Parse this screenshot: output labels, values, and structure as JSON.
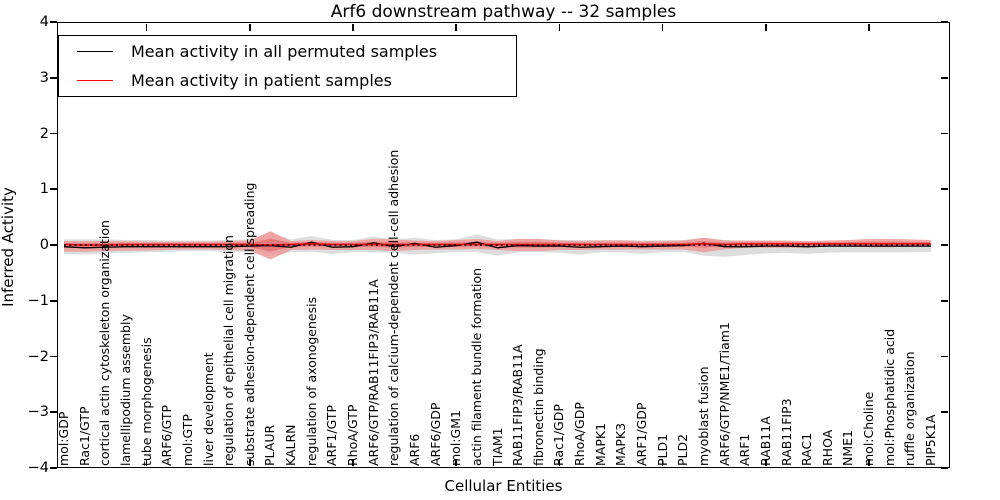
{
  "title": "Arf6 downstream pathway -- 32 samples",
  "axes": {
    "x_label": "Cellular Entities",
    "y_label": "Inferred Activity",
    "y_tick_labels": [
      "4",
      "3",
      "2",
      "1",
      "0",
      "−1",
      "−2",
      "−3",
      "−4"
    ]
  },
  "legend": {
    "entries": [
      {
        "label": "Mean activity in all permuted samples",
        "color": "#000000"
      },
      {
        "label": "Mean activity in patient samples",
        "color": "#ff0000"
      }
    ]
  },
  "chart_data": {
    "type": "line",
    "title": "Arf6 downstream pathway -- 32 samples",
    "xlabel": "Cellular Entities",
    "ylabel": "Inferred Activity",
    "ylim": [
      -4,
      4
    ],
    "grid": false,
    "legend_position": "upper left",
    "zero_line": {
      "style": "dotted",
      "color": "#000000",
      "y": 0
    },
    "categories": [
      "mol:GDP",
      "Rac1/GTP",
      "cortical actin cytoskeleton organization",
      "lamellipodium assembly",
      "tube morphogenesis",
      "ARF6/GTP",
      "mol:GTP",
      "liver development",
      "regulation of epithelial cell migration",
      "substrate adhesion-dependent cell spreading",
      "PLAUR",
      "KALRN",
      "regulation of axonogenesis",
      "ARF1/GTP",
      "RhoA/GTP",
      "ARF6/GTP/RAB11FIP3/RAB11A",
      "regulation of calcium-dependent cell-cell adhesion",
      "ARF6",
      "ARF6/GDP",
      "mol:GM1",
      "actin filament bundle formation",
      "TIAM1",
      "RAB11FIP3/RAB11A",
      "fibronectin binding",
      "Rac1/GDP",
      "RhoA/GDP",
      "MAPK1",
      "MAPK3",
      "ARF1/GDP",
      "PLD1",
      "PLD2",
      "myoblast fusion",
      "ARF6/GTP/NME1/Tiam1",
      "ARF1",
      "RAB11A",
      "RAB11FIP3",
      "RAC1",
      "RHOA",
      "NME1",
      "mol:Choline",
      "mol:Phosphatidic acid",
      "ruffle organization",
      "PIP5K1A"
    ],
    "series": [
      {
        "name": "Mean activity in all permuted samples",
        "color": "#000000",
        "values": [
          -0.03,
          -0.05,
          -0.04,
          -0.03,
          -0.03,
          -0.03,
          -0.03,
          -0.03,
          -0.03,
          -0.02,
          -0.01,
          -0.04,
          0.05,
          -0.04,
          -0.03,
          0.04,
          -0.03,
          0.03,
          -0.04,
          -0.01,
          0.05,
          -0.05,
          -0.01,
          -0.02,
          -0.02,
          -0.04,
          -0.03,
          -0.02,
          -0.03,
          -0.02,
          -0.01,
          0.03,
          -0.03,
          -0.03,
          -0.02,
          -0.02,
          -0.03,
          -0.02,
          -0.02,
          -0.02,
          -0.02,
          -0.02,
          -0.02
        ]
      },
      {
        "name": "Mean activity in patient samples",
        "color": "#ff0000",
        "values": [
          0.01,
          0.0,
          0.0,
          0.01,
          0.01,
          0.01,
          0.01,
          0.01,
          0.01,
          0.01,
          0.0,
          0.01,
          0.02,
          0.01,
          0.01,
          0.01,
          0.01,
          0.01,
          0.01,
          0.01,
          0.01,
          0.01,
          0.01,
          0.01,
          0.01,
          0.01,
          0.01,
          0.01,
          0.01,
          0.01,
          0.01,
          0.02,
          0.01,
          0.02,
          0.02,
          0.02,
          0.02,
          0.02,
          0.02,
          0.02,
          0.02,
          0.02,
          0.02
        ]
      }
    ],
    "bands": [
      {
        "name": "permuted samples activity range",
        "color": "#d9d9d9",
        "lo": [
          -0.16,
          -0.17,
          -0.15,
          -0.14,
          -0.13,
          -0.12,
          -0.11,
          -0.11,
          -0.12,
          -0.13,
          -0.2,
          -0.13,
          -0.12,
          -0.16,
          -0.13,
          -0.13,
          -0.14,
          -0.17,
          -0.15,
          -0.12,
          -0.13,
          -0.19,
          -0.13,
          -0.13,
          -0.14,
          -0.17,
          -0.13,
          -0.13,
          -0.16,
          -0.13,
          -0.12,
          -0.19,
          -0.21,
          -0.18,
          -0.15,
          -0.14,
          -0.16,
          -0.14,
          -0.13,
          -0.13,
          -0.13,
          -0.13,
          -0.12
        ],
        "hi": [
          0.1,
          0.1,
          0.1,
          0.09,
          0.09,
          0.08,
          0.08,
          0.08,
          0.09,
          0.1,
          0.22,
          0.1,
          0.16,
          0.09,
          0.09,
          0.15,
          0.1,
          0.13,
          0.09,
          0.1,
          0.19,
          0.1,
          0.11,
          0.11,
          0.09,
          0.09,
          0.09,
          0.09,
          0.08,
          0.09,
          0.09,
          0.13,
          0.09,
          0.07,
          0.07,
          0.07,
          0.06,
          0.06,
          0.07,
          0.07,
          0.07,
          0.06,
          0.05
        ]
      },
      {
        "name": "patient samples activity range",
        "color": "#ef9a9a",
        "inner_color": "#e57373",
        "lo": [
          -0.12,
          -0.12,
          -0.11,
          -0.1,
          -0.1,
          -0.09,
          -0.08,
          -0.08,
          -0.09,
          -0.1,
          -0.26,
          -0.09,
          -0.08,
          -0.09,
          -0.09,
          -0.09,
          -0.11,
          -0.09,
          -0.08,
          -0.08,
          -0.07,
          -0.09,
          -0.11,
          -0.11,
          -0.09,
          -0.09,
          -0.08,
          -0.08,
          -0.08,
          -0.08,
          -0.08,
          -0.13,
          -0.08,
          -0.05,
          -0.05,
          -0.05,
          -0.05,
          -0.03,
          -0.03,
          -0.04,
          -0.04,
          -0.03,
          -0.02
        ],
        "hi": [
          0.07,
          0.07,
          0.07,
          0.07,
          0.06,
          0.06,
          0.06,
          0.06,
          0.07,
          0.08,
          0.25,
          0.07,
          0.09,
          0.07,
          0.07,
          0.11,
          0.1,
          0.08,
          0.07,
          0.09,
          0.11,
          0.07,
          0.11,
          0.11,
          0.08,
          0.07,
          0.08,
          0.08,
          0.07,
          0.07,
          0.08,
          0.13,
          0.08,
          0.08,
          0.08,
          0.08,
          0.07,
          0.08,
          0.09,
          0.11,
          0.11,
          0.1,
          0.09
        ]
      }
    ]
  }
}
